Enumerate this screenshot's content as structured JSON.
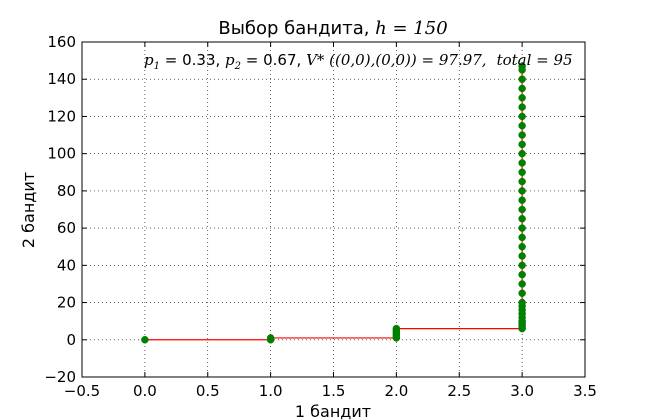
{
  "chart_data": {
    "type": "line",
    "title": "Выбор бандита, ",
    "title_math": "h = 150",
    "xlabel": "1 бандит",
    "ylabel": "2 бандит",
    "xlim": [
      -0.5,
      3.5
    ],
    "ylim": [
      -20,
      160
    ],
    "x_ticks": [
      -0.5,
      0.0,
      0.5,
      1.0,
      1.5,
      2.0,
      2.5,
      3.0,
      3.5
    ],
    "y_ticks": [
      -20,
      0,
      20,
      40,
      60,
      80,
      100,
      120,
      140,
      160
    ],
    "x_tick_labels": [
      "−0.5",
      "0.0",
      "0.5",
      "1.0",
      "1.5",
      "2.0",
      "2.5",
      "3.0",
      "3.5"
    ],
    "y_tick_labels": [
      "−20",
      "0",
      "20",
      "40",
      "60",
      "80",
      "100",
      "120",
      "140",
      "160"
    ],
    "grid": true,
    "annotation": {
      "p1_label": "p",
      "p1_sub": "1",
      "p1_value": " = 0.33, ",
      "p2_label": "p",
      "p2_sub": "2",
      "p2_value": " = 0.67, ",
      "v_text": "V* ((0,0),(0,0)) = 97.97,",
      "total_text": "total = 95"
    },
    "series": [
      {
        "line_color": "#ff0000",
        "marker_color": "#008000",
        "points": [
          [
            0,
            0
          ],
          [
            1,
            0
          ],
          [
            1,
            1
          ],
          [
            2,
            1
          ],
          [
            2,
            2
          ],
          [
            2,
            3
          ],
          [
            2,
            4
          ],
          [
            2,
            5
          ],
          [
            2,
            6
          ],
          [
            3,
            6
          ],
          [
            3,
            7
          ],
          [
            3,
            8
          ],
          [
            3,
            9
          ],
          [
            3,
            10
          ],
          [
            3,
            12
          ],
          [
            3,
            14
          ],
          [
            3,
            16
          ],
          [
            3,
            18
          ],
          [
            3,
            20
          ],
          [
            3,
            25
          ],
          [
            3,
            30
          ],
          [
            3,
            35
          ],
          [
            3,
            40
          ],
          [
            3,
            45
          ],
          [
            3,
            50
          ],
          [
            3,
            55
          ],
          [
            3,
            60
          ],
          [
            3,
            65
          ],
          [
            3,
            70
          ],
          [
            3,
            75
          ],
          [
            3,
            80
          ],
          [
            3,
            85
          ],
          [
            3,
            90
          ],
          [
            3,
            95
          ],
          [
            3,
            100
          ],
          [
            3,
            105
          ],
          [
            3,
            110
          ],
          [
            3,
            115
          ],
          [
            3,
            120
          ],
          [
            3,
            125
          ],
          [
            3,
            130
          ],
          [
            3,
            135
          ],
          [
            3,
            140
          ],
          [
            3,
            145
          ],
          [
            3,
            147
          ]
        ]
      }
    ]
  }
}
